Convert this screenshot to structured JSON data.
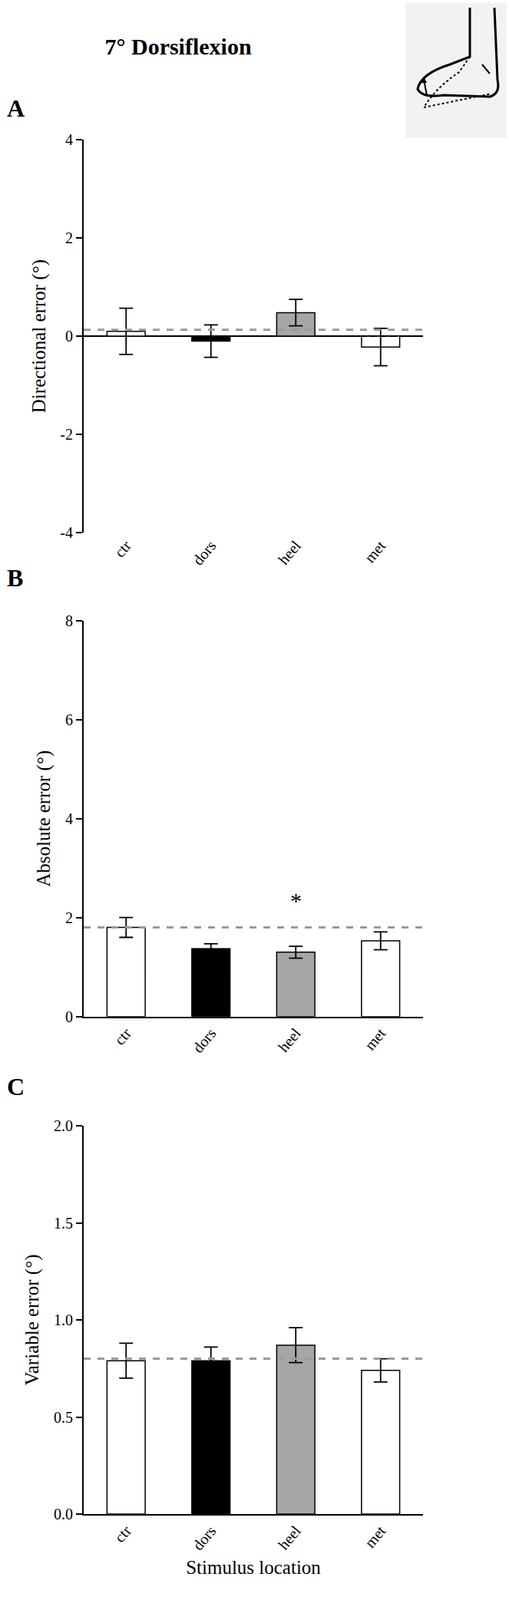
{
  "chart_data": [
    {
      "type": "bar",
      "title": "7° Dorsiflexion",
      "panel": "A",
      "categories": [
        "ctr",
        "dors",
        "heel",
        "met"
      ],
      "values": [
        0.1,
        -0.1,
        0.48,
        -0.22
      ],
      "errors": [
        0.47,
        0.33,
        0.27,
        0.38
      ],
      "colors": [
        "#ffffff",
        "#000000",
        "#a6a6a6",
        "#ffffff"
      ],
      "reference_line": 0.13,
      "ylim": [
        -4,
        4
      ],
      "yticks": [
        -4,
        -2,
        0,
        2,
        4
      ],
      "y_label": "Directional error (°)"
    },
    {
      "type": "bar",
      "panel": "B",
      "categories": [
        "ctr",
        "dors",
        "heel",
        "met"
      ],
      "values": [
        1.8,
        1.37,
        1.3,
        1.53
      ],
      "errors": [
        0.2,
        0.1,
        0.12,
        0.18
      ],
      "colors": [
        "#ffffff",
        "#000000",
        "#a6a6a6",
        "#ffffff"
      ],
      "reference_line": 1.8,
      "ylim": [
        0,
        8
      ],
      "yticks": [
        0,
        2,
        4,
        6,
        8
      ],
      "y_label": "Absolute error (°)",
      "annotations": [
        {
          "text": "*",
          "category": "heel",
          "y": 2.35
        }
      ]
    },
    {
      "type": "bar",
      "panel": "C",
      "categories": [
        "ctr",
        "dors",
        "heel",
        "met"
      ],
      "values": [
        0.79,
        0.79,
        0.87,
        0.74
      ],
      "errors": [
        0.09,
        0.07,
        0.09,
        0.06
      ],
      "colors": [
        "#ffffff",
        "#000000",
        "#a6a6a6",
        "#ffffff"
      ],
      "reference_line": 0.8,
      "ylim": [
        0,
        2
      ],
      "yticks": [
        {
          "value": 0,
          "label": "0.0"
        },
        {
          "value": 0.5,
          "label": "0.5"
        },
        {
          "value": 1,
          "label": "1.0"
        },
        {
          "value": 1.5,
          "label": "1.5"
        },
        {
          "value": 2,
          "label": "2.0"
        }
      ],
      "y_label": "Variable error (°)",
      "x_label": "Stimulus location"
    }
  ]
}
